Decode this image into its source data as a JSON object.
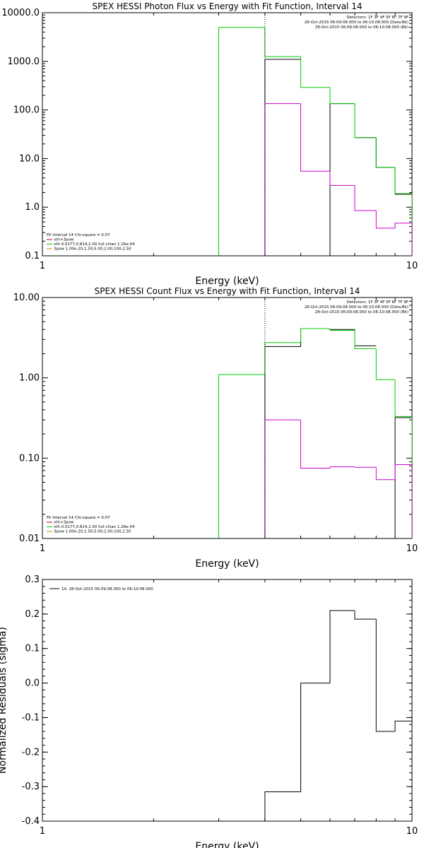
{
  "chart_data": [
    {
      "type": "line",
      "title": "SPEX HESSI Photon Flux vs Energy with Fit Function, Interval 14",
      "xlabel": "Energy (keV)",
      "ylabel": "",
      "xscale": "log",
      "yscale": "log",
      "xlim": [
        1,
        10
      ],
      "ylim": [
        0.1,
        10000
      ],
      "xticks": [
        {
          "v": 1,
          "label": "1"
        },
        {
          "v": 10,
          "label": "10"
        }
      ],
      "yticks": [
        {
          "v": 0.1,
          "label": "0.1"
        },
        {
          "v": 1,
          "label": "1.0"
        },
        {
          "v": 10,
          "label": "10.0"
        },
        {
          "v": 100,
          "label": "100.0"
        },
        {
          "v": 1000,
          "label": "1000.0"
        },
        {
          "v": 10000,
          "label": "10000.0"
        }
      ],
      "edges": [
        3,
        4,
        5,
        6,
        7,
        8,
        9,
        10
      ],
      "series": [
        {
          "color": "#000000",
          "values": [
            null,
            1100,
            null,
            135,
            27,
            6.6,
            1.85
          ]
        },
        {
          "color": "#00cc00",
          "values": [
            5000,
            1250,
            290,
            135,
            27,
            6.6,
            1.9
          ]
        },
        {
          "color": "#cc00cc",
          "values": [
            null,
            135,
            5.5,
            2.8,
            0.85,
            0.37,
            0.47
          ]
        }
      ],
      "vline": 4,
      "header": [
        "Detectors: 1F 3F 4F 5F 6F 7F 9F",
        "28-Oct-2015 06:09:08.000 to 06:10:08.000 (Data-Bk)",
        "28-Oct-2015 06:09:08.000 to 06:10:08.000 (Bk)"
      ],
      "legend": [
        {
          "text": "Fit Interval 14   Chi-square = 0.07",
          "color": ""
        },
        {
          "text": "vth+3pow",
          "color": "#cc0000"
        },
        {
          "text": "vth 0.0177,0.814,1.00  full chian 1.26e-04",
          "color": "#00cc00"
        },
        {
          "text": "3pow 1.00e-20,1.50,5.00,2.00,100,2.50",
          "color": "#cc8800"
        }
      ]
    },
    {
      "type": "line",
      "title": "SPEX HESSI Count Flux vs Energy with Fit Function, Interval 14",
      "xlabel": "Energy (keV)",
      "ylabel": "",
      "xscale": "log",
      "yscale": "log",
      "xlim": [
        1,
        10
      ],
      "ylim": [
        0.01,
        10
      ],
      "xticks": [
        {
          "v": 1,
          "label": "1"
        },
        {
          "v": 10,
          "label": "10"
        }
      ],
      "yticks": [
        {
          "v": 0.01,
          "label": "0.01"
        },
        {
          "v": 0.1,
          "label": "0.10"
        },
        {
          "v": 1,
          "label": "1.00"
        },
        {
          "v": 10,
          "label": "10.00"
        }
      ],
      "edges": [
        3,
        4,
        5,
        6,
        7,
        8,
        9,
        10
      ],
      "series": [
        {
          "color": "#000000",
          "values": [
            null,
            2.45,
            4.1,
            4.0,
            2.5,
            null,
            0.32
          ]
        },
        {
          "color": "#00cc00",
          "values": [
            1.1,
            2.75,
            4.1,
            3.9,
            2.3,
            0.95,
            0.33
          ]
        },
        {
          "color": "#cc00cc",
          "values": [
            null,
            0.3,
            0.075,
            0.078,
            0.077,
            0.054,
            0.083
          ]
        }
      ],
      "vline": 4,
      "header": [
        "Detectors: 1F 3F 4F 5F 6F 7F 9F",
        "28-Oct-2015 06:09:08.000 to 06:10:08.000 (Data-Bk)",
        "28-Oct-2015 06:09:08.000 to 06:10:08.000 (Bk)"
      ],
      "legend": [
        {
          "text": "Fit Interval 14   Chi-square = 0.07",
          "color": ""
        },
        {
          "text": "vth+3pow",
          "color": "#cc0000"
        },
        {
          "text": "vth 0.0177,0.814,1.00  full chian 1.26e-04",
          "color": "#00cc00"
        },
        {
          "text": "3pow 1.00e-20,1.50,5.00,2.00,100,2.50",
          "color": "#cc8800"
        }
      ]
    },
    {
      "type": "line",
      "title": "",
      "xlabel": "Energy (keV)",
      "ylabel": "Normalized Residuals (sigma)",
      "xscale": "log",
      "yscale": "linear",
      "xlim": [
        1,
        10
      ],
      "ylim": [
        -0.4,
        0.3
      ],
      "xticks": [
        {
          "v": 1,
          "label": "1"
        },
        {
          "v": 10,
          "label": "10"
        }
      ],
      "yticks": [
        {
          "v": -0.4,
          "label": "-0.4"
        },
        {
          "v": -0.3,
          "label": "-0.3"
        },
        {
          "v": -0.2,
          "label": "-0.2"
        },
        {
          "v": -0.1,
          "label": "-0.1"
        },
        {
          "v": 0.0,
          "label": "0.0"
        },
        {
          "v": 0.1,
          "label": "0.1"
        },
        {
          "v": 0.2,
          "label": "0.2"
        },
        {
          "v": 0.3,
          "label": "0.3"
        }
      ],
      "edges": [
        4,
        5,
        6,
        7,
        8,
        9,
        10
      ],
      "series": [
        {
          "color": "#000000",
          "values": [
            -0.315,
            0.0,
            0.21,
            0.185,
            -0.14,
            -0.11
          ],
          "name": "14. 28-Oct-2015 06:09:08.000 to 06:10:08.000"
        }
      ],
      "vline": null,
      "header": [],
      "legend": [
        {
          "text": "14. 28-Oct-2015 06:09:08.000 to 06:10:08.000",
          "color": "#000000"
        }
      ]
    }
  ]
}
